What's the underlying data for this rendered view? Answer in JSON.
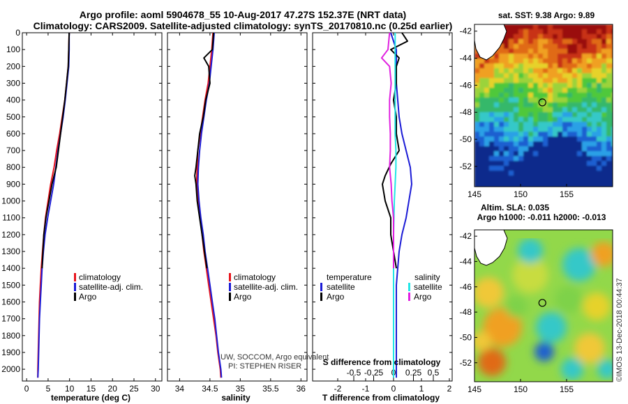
{
  "title": {
    "line1": "Argo profile: aoml 5904678_55 10-Aug-2017 47.27S 152.37E (NRT data)",
    "line2": "Climatology: CARS2009. Satellite-adjusted climatology: synTS_20170810.nc (0.25d earlier)"
  },
  "colors": {
    "climatology": "#e8141c",
    "satellite": "#1b1bd6",
    "argo": "#000000",
    "sal_satellite": "#22e6e6",
    "sal_argo": "#e020e0"
  },
  "credit": {
    "line1": "UW, SOCCOM, Argo equivalent",
    "line2": "PI: STEPHEN RISER"
  },
  "watermark": "©IMOS 13-Dec-2018 00:44:37",
  "chart_data": [
    {
      "type": "line",
      "id": "temperature",
      "xlabel": "temperature (deg C)",
      "ylabel": "",
      "xlim": [
        -1,
        31.5
      ],
      "ylim": [
        2070,
        0
      ],
      "xticks": [
        0,
        5,
        10,
        15,
        20,
        25,
        30
      ],
      "xticklabels": [
        "0",
        "5",
        "10",
        "15",
        "20",
        "25",
        "30"
      ],
      "yticks": [
        0,
        100,
        200,
        300,
        400,
        500,
        600,
        700,
        800,
        900,
        1000,
        1100,
        1200,
        1300,
        1400,
        1500,
        1600,
        1700,
        1800,
        1900,
        2000
      ],
      "legend_position": "center-right",
      "legend": [
        "climatology",
        "satellite-adj. clim.",
        "Argo"
      ],
      "series": [
        {
          "name": "climatology",
          "color_key": "climatology",
          "depth": [
            0,
            100,
            200,
            300,
            400,
            500,
            600,
            700,
            800,
            900,
            1000,
            1100,
            1200,
            1300,
            1400,
            1500,
            1600,
            1700,
            1800,
            1900,
            2000,
            2050
          ],
          "values": [
            9.9,
            9.8,
            9.7,
            9.3,
            8.9,
            8.3,
            7.7,
            7.0,
            6.4,
            5.6,
            5.0,
            4.4,
            4.0,
            3.7,
            3.4,
            3.2,
            3.0,
            2.9,
            2.8,
            2.7,
            2.6,
            2.6
          ]
        },
        {
          "name": "satellite-adj. clim.",
          "color_key": "satellite",
          "depth": [
            0,
            100,
            200,
            300,
            400,
            500,
            600,
            700,
            800,
            900,
            1000,
            1100,
            1200,
            1300,
            1400,
            1500,
            1600,
            1700,
            1800,
            1900,
            2000,
            2050
          ],
          "values": [
            9.9,
            9.9,
            9.8,
            9.4,
            9.0,
            8.5,
            7.9,
            7.3,
            6.8,
            6.3,
            5.6,
            4.9,
            4.3,
            3.9,
            3.6,
            3.4,
            3.2,
            3.0,
            2.9,
            2.8,
            2.7,
            2.6
          ]
        },
        {
          "name": "Argo",
          "color_key": "argo",
          "depth": [
            0,
            100,
            200,
            300,
            400,
            500,
            600,
            700,
            800,
            850,
            900,
            1000,
            1100,
            1200,
            1300,
            1400
          ],
          "values": [
            9.9,
            9.8,
            9.7,
            9.3,
            8.9,
            8.4,
            7.9,
            7.4,
            6.9,
            6.4,
            5.9,
            5.2,
            4.5,
            4.0,
            3.8,
            3.6
          ]
        }
      ]
    },
    {
      "type": "line",
      "id": "salinity",
      "xlabel": "salinity",
      "ylabel": "",
      "xlim": [
        33.8,
        36.1
      ],
      "ylim": [
        2070,
        0
      ],
      "xticks": [
        34,
        34.5,
        35,
        35.5,
        36
      ],
      "xticklabels": [
        "34",
        "34.5",
        "35",
        "35.5",
        "36"
      ],
      "legend_position": "center-right",
      "legend": [
        "climatology",
        "satellite-adj. clim.",
        "Argo"
      ],
      "series": [
        {
          "name": "climatology",
          "color_key": "climatology",
          "depth": [
            0,
            100,
            200,
            300,
            400,
            500,
            600,
            700,
            800,
            900,
            1000,
            1100,
            1200,
            1300,
            1400,
            1500,
            1600,
            1700,
            1800,
            1900,
            2000,
            2050
          ],
          "values": [
            34.55,
            34.53,
            34.5,
            34.47,
            34.42,
            34.38,
            34.34,
            34.3,
            34.29,
            34.28,
            34.31,
            34.34,
            34.37,
            34.4,
            34.44,
            34.48,
            34.52,
            34.56,
            34.6,
            34.63,
            34.67,
            34.68
          ]
        },
        {
          "name": "satellite-adj. clim.",
          "color_key": "satellite",
          "depth": [
            0,
            100,
            200,
            300,
            400,
            500,
            600,
            700,
            800,
            900,
            1000,
            1100,
            1200,
            1300,
            1400,
            1500,
            1600,
            1700,
            1800,
            1900,
            2000,
            2050
          ],
          "values": [
            34.57,
            34.55,
            34.52,
            34.49,
            34.44,
            34.4,
            34.36,
            34.33,
            34.31,
            34.3,
            34.32,
            34.35,
            34.39,
            34.42,
            34.46,
            34.5,
            34.54,
            34.58,
            34.61,
            34.64,
            34.68,
            34.69
          ]
        },
        {
          "name": "Argo",
          "color_key": "argo",
          "depth": [
            0,
            100,
            150,
            200,
            300,
            400,
            500,
            600,
            700,
            800,
            850,
            900,
            1000,
            1100,
            1200,
            1300,
            1400
          ],
          "values": [
            34.56,
            34.54,
            34.4,
            34.48,
            34.5,
            34.43,
            34.39,
            34.33,
            34.3,
            34.27,
            34.25,
            34.27,
            34.29,
            34.33,
            34.37,
            34.41,
            34.45
          ]
        }
      ]
    },
    {
      "type": "line",
      "id": "differences",
      "xlabel": "T difference from climatology",
      "xlabel2": "S difference from climatology",
      "ylabel": "",
      "xlim": [
        -2.9,
        2.1
      ],
      "ylim": [
        2070,
        0
      ],
      "xticks": [
        -2,
        -1,
        0,
        1,
        2
      ],
      "xticklabels": [
        "-2",
        "-1",
        "0",
        "1",
        "2"
      ],
      "sticks": [
        -0.5,
        -0.25,
        0,
        0.25,
        0.5
      ],
      "sticklabels": [
        "-0.5",
        "-0.25",
        "0",
        "0.25",
        "0.5"
      ],
      "legend_position": "center",
      "legend_groups": {
        "temperature": {
          "heading": "temperature",
          "items": [
            "satellite",
            "Argo"
          ]
        },
        "salinity": {
          "heading": "salinity",
          "items": [
            "satellite",
            "Argo"
          ]
        }
      },
      "series": [
        {
          "name": "temperature satellite",
          "color_key": "satellite",
          "depth": [
            0,
            100,
            200,
            300,
            400,
            500,
            600,
            700,
            800,
            900,
            1000,
            1100,
            1200,
            1300,
            1400,
            1500,
            1600,
            1800,
            2000,
            2050
          ],
          "values": [
            -0.1,
            0.1,
            0.1,
            0.1,
            0.15,
            0.2,
            0.3,
            0.45,
            0.6,
            0.65,
            0.55,
            0.45,
            0.3,
            0.2,
            0.15,
            0.1,
            0.1,
            0.1,
            0.1,
            0.1
          ]
        },
        {
          "name": "temperature Argo",
          "color_key": "argo",
          "depth": [
            0,
            50,
            100,
            150,
            200,
            300,
            400,
            500,
            600,
            700,
            780,
            850,
            900,
            1000,
            1100,
            1200,
            1300,
            1400
          ],
          "values": [
            0.3,
            0.5,
            -0.1,
            0.2,
            0.1,
            0.1,
            0.0,
            0.1,
            0.1,
            0.2,
            -0.1,
            -0.3,
            -0.4,
            -0.3,
            -0.1,
            -0.1,
            0.0,
            0.1
          ]
        },
        {
          "name": "salinity satellite",
          "color_key": "sal_satellite",
          "depth": [
            0,
            100,
            200,
            300,
            400,
            500,
            600,
            700,
            800,
            900,
            1000,
            1200,
            1400,
            1600,
            1800,
            2000,
            2050
          ],
          "values": [
            0.02,
            0.02,
            0.02,
            0.02,
            0.02,
            0.02,
            0.02,
            0.03,
            0.03,
            0.02,
            0.01,
            0.0,
            0.0,
            0.0,
            0.0,
            0.0,
            0.0
          ]
        },
        {
          "name": "salinity Argo",
          "color_key": "sal_argo",
          "depth": [
            0,
            100,
            150,
            200,
            300,
            400,
            500,
            600,
            700,
            800,
            900,
            1000,
            1100,
            1200,
            1300,
            1400
          ],
          "values": [
            -0.05,
            -0.07,
            -0.15,
            -0.05,
            -0.03,
            -0.05,
            -0.05,
            -0.04,
            -0.04,
            -0.05,
            -0.03,
            -0.02,
            0.0,
            0.0,
            0.0,
            0.0
          ]
        }
      ]
    },
    {
      "type": "heatmap",
      "id": "sst_map",
      "title": "sat. SST: 9.38 Argo: 9.89",
      "xlim": [
        145,
        160
      ],
      "ylim": [
        -53.5,
        -41.5
      ],
      "xticks": [
        145,
        150,
        155
      ],
      "yticks": [
        -42,
        -44,
        -46,
        -48,
        -50,
        -52
      ],
      "xticklabels": [
        "145",
        "150",
        "155"
      ],
      "yticklabels": [
        "-42",
        "-44",
        "-46",
        "-48",
        "-50",
        "-52"
      ],
      "marker": {
        "lon": 152.37,
        "lat": -47.27
      }
    },
    {
      "type": "heatmap",
      "id": "sla_map",
      "title": "Altim. SLA: 0.035",
      "subtitle": "Argo h1000: -0.011 h2000: -0.013",
      "xlim": [
        145,
        160
      ],
      "ylim": [
        -53.5,
        -41.5
      ],
      "xticks": [
        145,
        150,
        155
      ],
      "yticks": [
        -42,
        -44,
        -46,
        -48,
        -50,
        -52
      ],
      "xticklabels": [
        "145",
        "150",
        "155"
      ],
      "yticklabels": [
        "-42",
        "-44",
        "-46",
        "-48",
        "-50",
        "-52"
      ],
      "marker": {
        "lon": 152.37,
        "lat": -47.27
      }
    }
  ]
}
